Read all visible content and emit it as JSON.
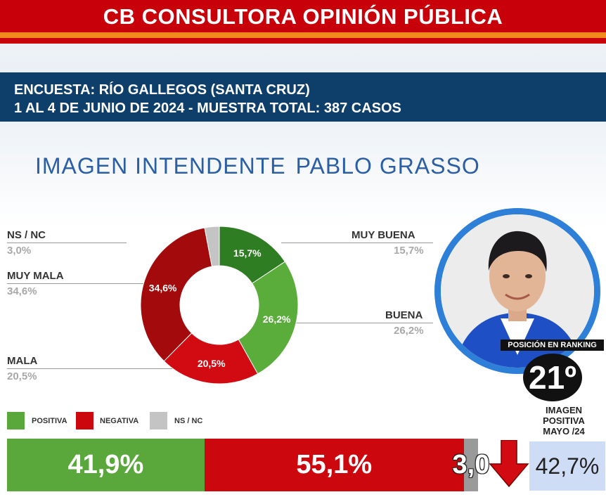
{
  "header": {
    "title": "CB CONSULTORA OPINIÓN PÚBLICA"
  },
  "survey": {
    "line1": "ENCUESTA: RÍO GALLEGOS (SANTA CRUZ)",
    "line2": "1 AL 4 DE JUNIO DE 2024 - MUESTRA TOTAL: 387 CASOS"
  },
  "subtitle": {
    "part1": "IMAGEN INTENDENTE",
    "part2": "PABLO GRASSO"
  },
  "chart_data": [
    {
      "type": "pie",
      "categories": [
        "MUY BUENA",
        "BUENA",
        "MALA",
        "MUY MALA",
        "NS / NC"
      ],
      "values": [
        15.7,
        26.2,
        20.5,
        34.6,
        3.0
      ],
      "value_labels": [
        "15,7%",
        "26,2%",
        "20,5%",
        "34,6%",
        "3,0%"
      ],
      "colors": [
        "#2f7d22",
        "#5aad3a",
        "#d10b11",
        "#a30a0c",
        "#c4c4c4"
      ]
    },
    {
      "type": "bar",
      "orientation": "horizontal-stacked",
      "categories": [
        "POSITIVA",
        "NEGATIVA",
        "NS / NC"
      ],
      "values": [
        41.9,
        55.1,
        3.0
      ],
      "value_labels": [
        "41,9%",
        "55,1%",
        "3,0"
      ],
      "colors": [
        "#5aa83c",
        "#cc070d",
        "#9a9a9a"
      ]
    }
  ],
  "ranking": {
    "label": "POSICIÓN EN RANKING",
    "value": "21º",
    "previous_label_1": "IMAGEN",
    "previous_label_2": "POSITIVA",
    "previous_label_3": "MAYO /24",
    "previous_value": "42,7%",
    "trend_icon": "arrow-down-icon",
    "trend_color": "#d10b11"
  },
  "photo": {
    "icon": "person-portrait"
  }
}
